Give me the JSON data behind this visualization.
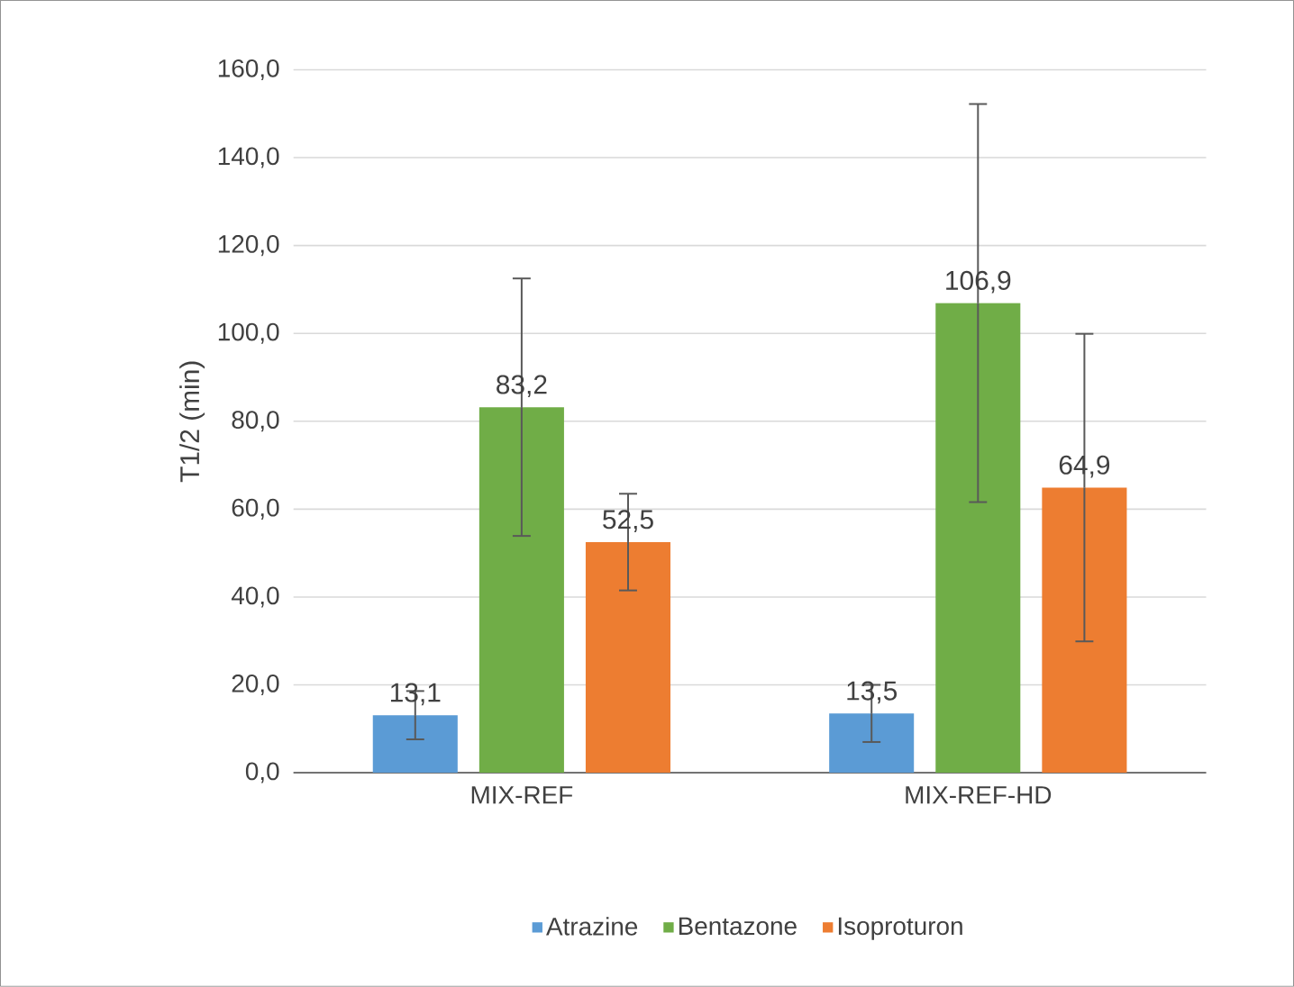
{
  "chart_data": {
    "type": "bar",
    "ylabel": "T1/2 (min)",
    "categories": [
      "MIX-REF",
      "MIX-REF-HD"
    ],
    "series": [
      {
        "name": "Atrazine",
        "color": "#5b9bd5",
        "values": [
          13.1,
          13.5
        ],
        "errors": [
          5.5,
          6.5
        ],
        "value_labels": [
          "13,1",
          "13,5"
        ]
      },
      {
        "name": "Bentazone",
        "color": "#70ad47",
        "values": [
          83.2,
          106.9
        ],
        "errors": [
          29.3,
          45.3
        ],
        "value_labels": [
          "83,2",
          "106,9"
        ]
      },
      {
        "name": "Isoproturon",
        "color": "#ed7d31",
        "values": [
          52.5,
          64.9
        ],
        "errors": [
          11,
          35
        ],
        "value_labels": [
          "52,5",
          "64,9"
        ]
      }
    ],
    "ylim": [
      0,
      160
    ],
    "yticks": [
      {
        "value": 0,
        "label": "0,0"
      },
      {
        "value": 20,
        "label": "20,0"
      },
      {
        "value": 40,
        "label": "40,0"
      },
      {
        "value": 60,
        "label": "60,0"
      },
      {
        "value": 80,
        "label": "80,0"
      },
      {
        "value": 100,
        "label": "100,0"
      },
      {
        "value": 120,
        "label": "120,0"
      },
      {
        "value": 140,
        "label": "140,0"
      },
      {
        "value": 160,
        "label": "160,0"
      }
    ],
    "grid": "y",
    "legend": "bottom"
  }
}
